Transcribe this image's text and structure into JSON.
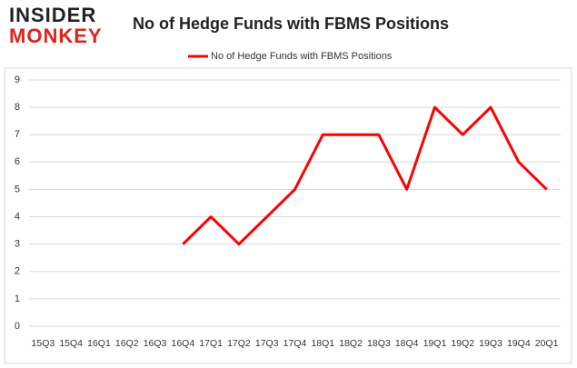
{
  "logo": {
    "line1": "INSIDER",
    "line2": "MONKEY"
  },
  "chart_data": {
    "type": "line",
    "title": "No of Hedge Funds with FBMS Positions",
    "categories": [
      "15Q3",
      "15Q4",
      "16Q1",
      "16Q2",
      "16Q3",
      "16Q4",
      "17Q1",
      "17Q2",
      "17Q3",
      "17Q4",
      "18Q1",
      "18Q2",
      "18Q3",
      "18Q4",
      "19Q1",
      "19Q2",
      "19Q3",
      "19Q4",
      "20Q1"
    ],
    "series": [
      {
        "name": "No of Hedge Funds with FBMS Positions",
        "color": "#ff0000",
        "values": [
          null,
          null,
          null,
          null,
          null,
          3,
          4,
          3,
          4,
          5,
          7,
          7,
          7,
          5,
          8,
          7,
          8,
          6,
          5
        ]
      }
    ],
    "ylim": [
      0,
      9
    ],
    "yticks": [
      0,
      1,
      2,
      3,
      4,
      5,
      6,
      7,
      8,
      9
    ],
    "grid": true,
    "legend": "top"
  }
}
